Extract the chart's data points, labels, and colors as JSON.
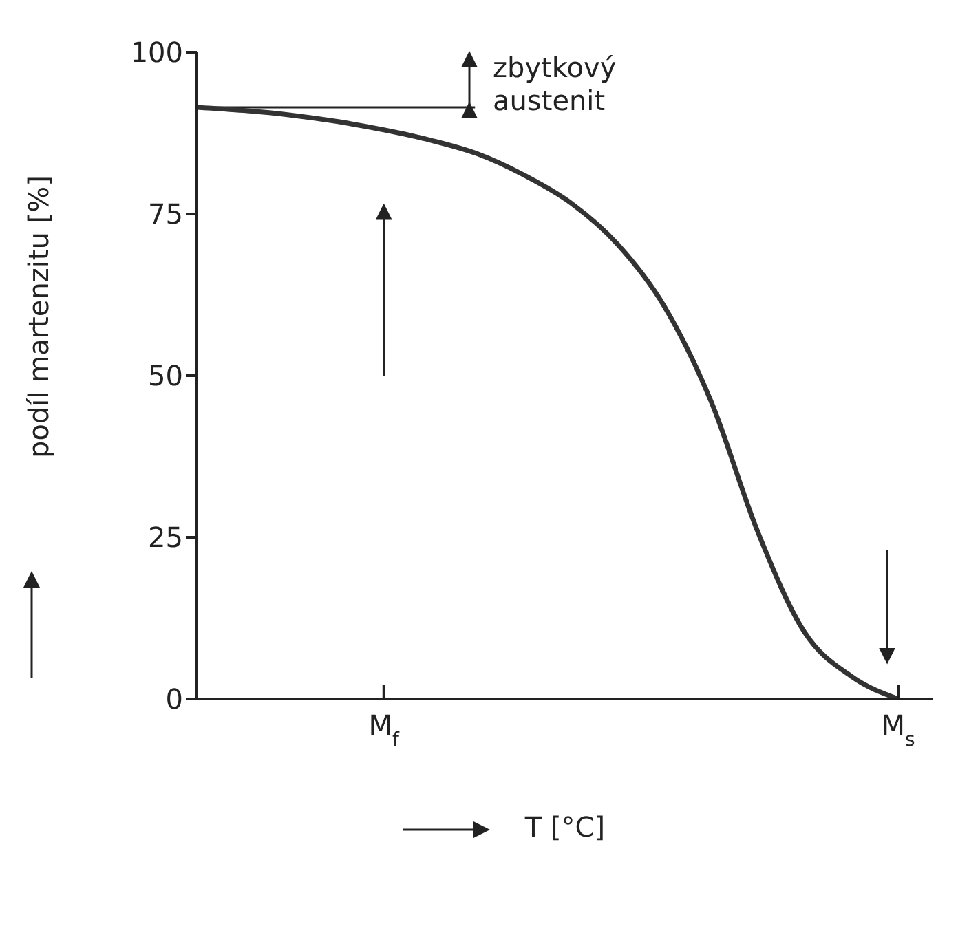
{
  "chart_data": {
    "type": "line",
    "ylabel": "podíl martenzitu [%]",
    "xlabel": "T [°C]",
    "categories": [
      null,
      null,
      null,
      null,
      "M$_{f}$",
      null,
      null,
      null,
      null,
      null,
      null,
      null,
      null,
      null,
      null,
      "M$_{s}$"
    ],
    "series": [
      {
        "color": "#333333",
        "values": [
          91.5,
          91,
          90.3,
          89.3,
          88,
          86.4,
          84.3,
          81,
          76.7,
          70.3,
          60.7,
          46,
          25.8,
          10.3,
          3.5,
          0
        ]
      }
    ],
    "ylim": [
      0,
      100
    ],
    "yticks": [
      0,
      25,
      50,
      75,
      100
    ],
    "grid": false,
    "legend": false,
    "marker": "none",
    "line_style": "solid",
    "ref_lines": [
      {
        "axis": "y",
        "value": 91.5
      }
    ],
    "annotations": [
      "zbytkový austenit"
    ]
  }
}
